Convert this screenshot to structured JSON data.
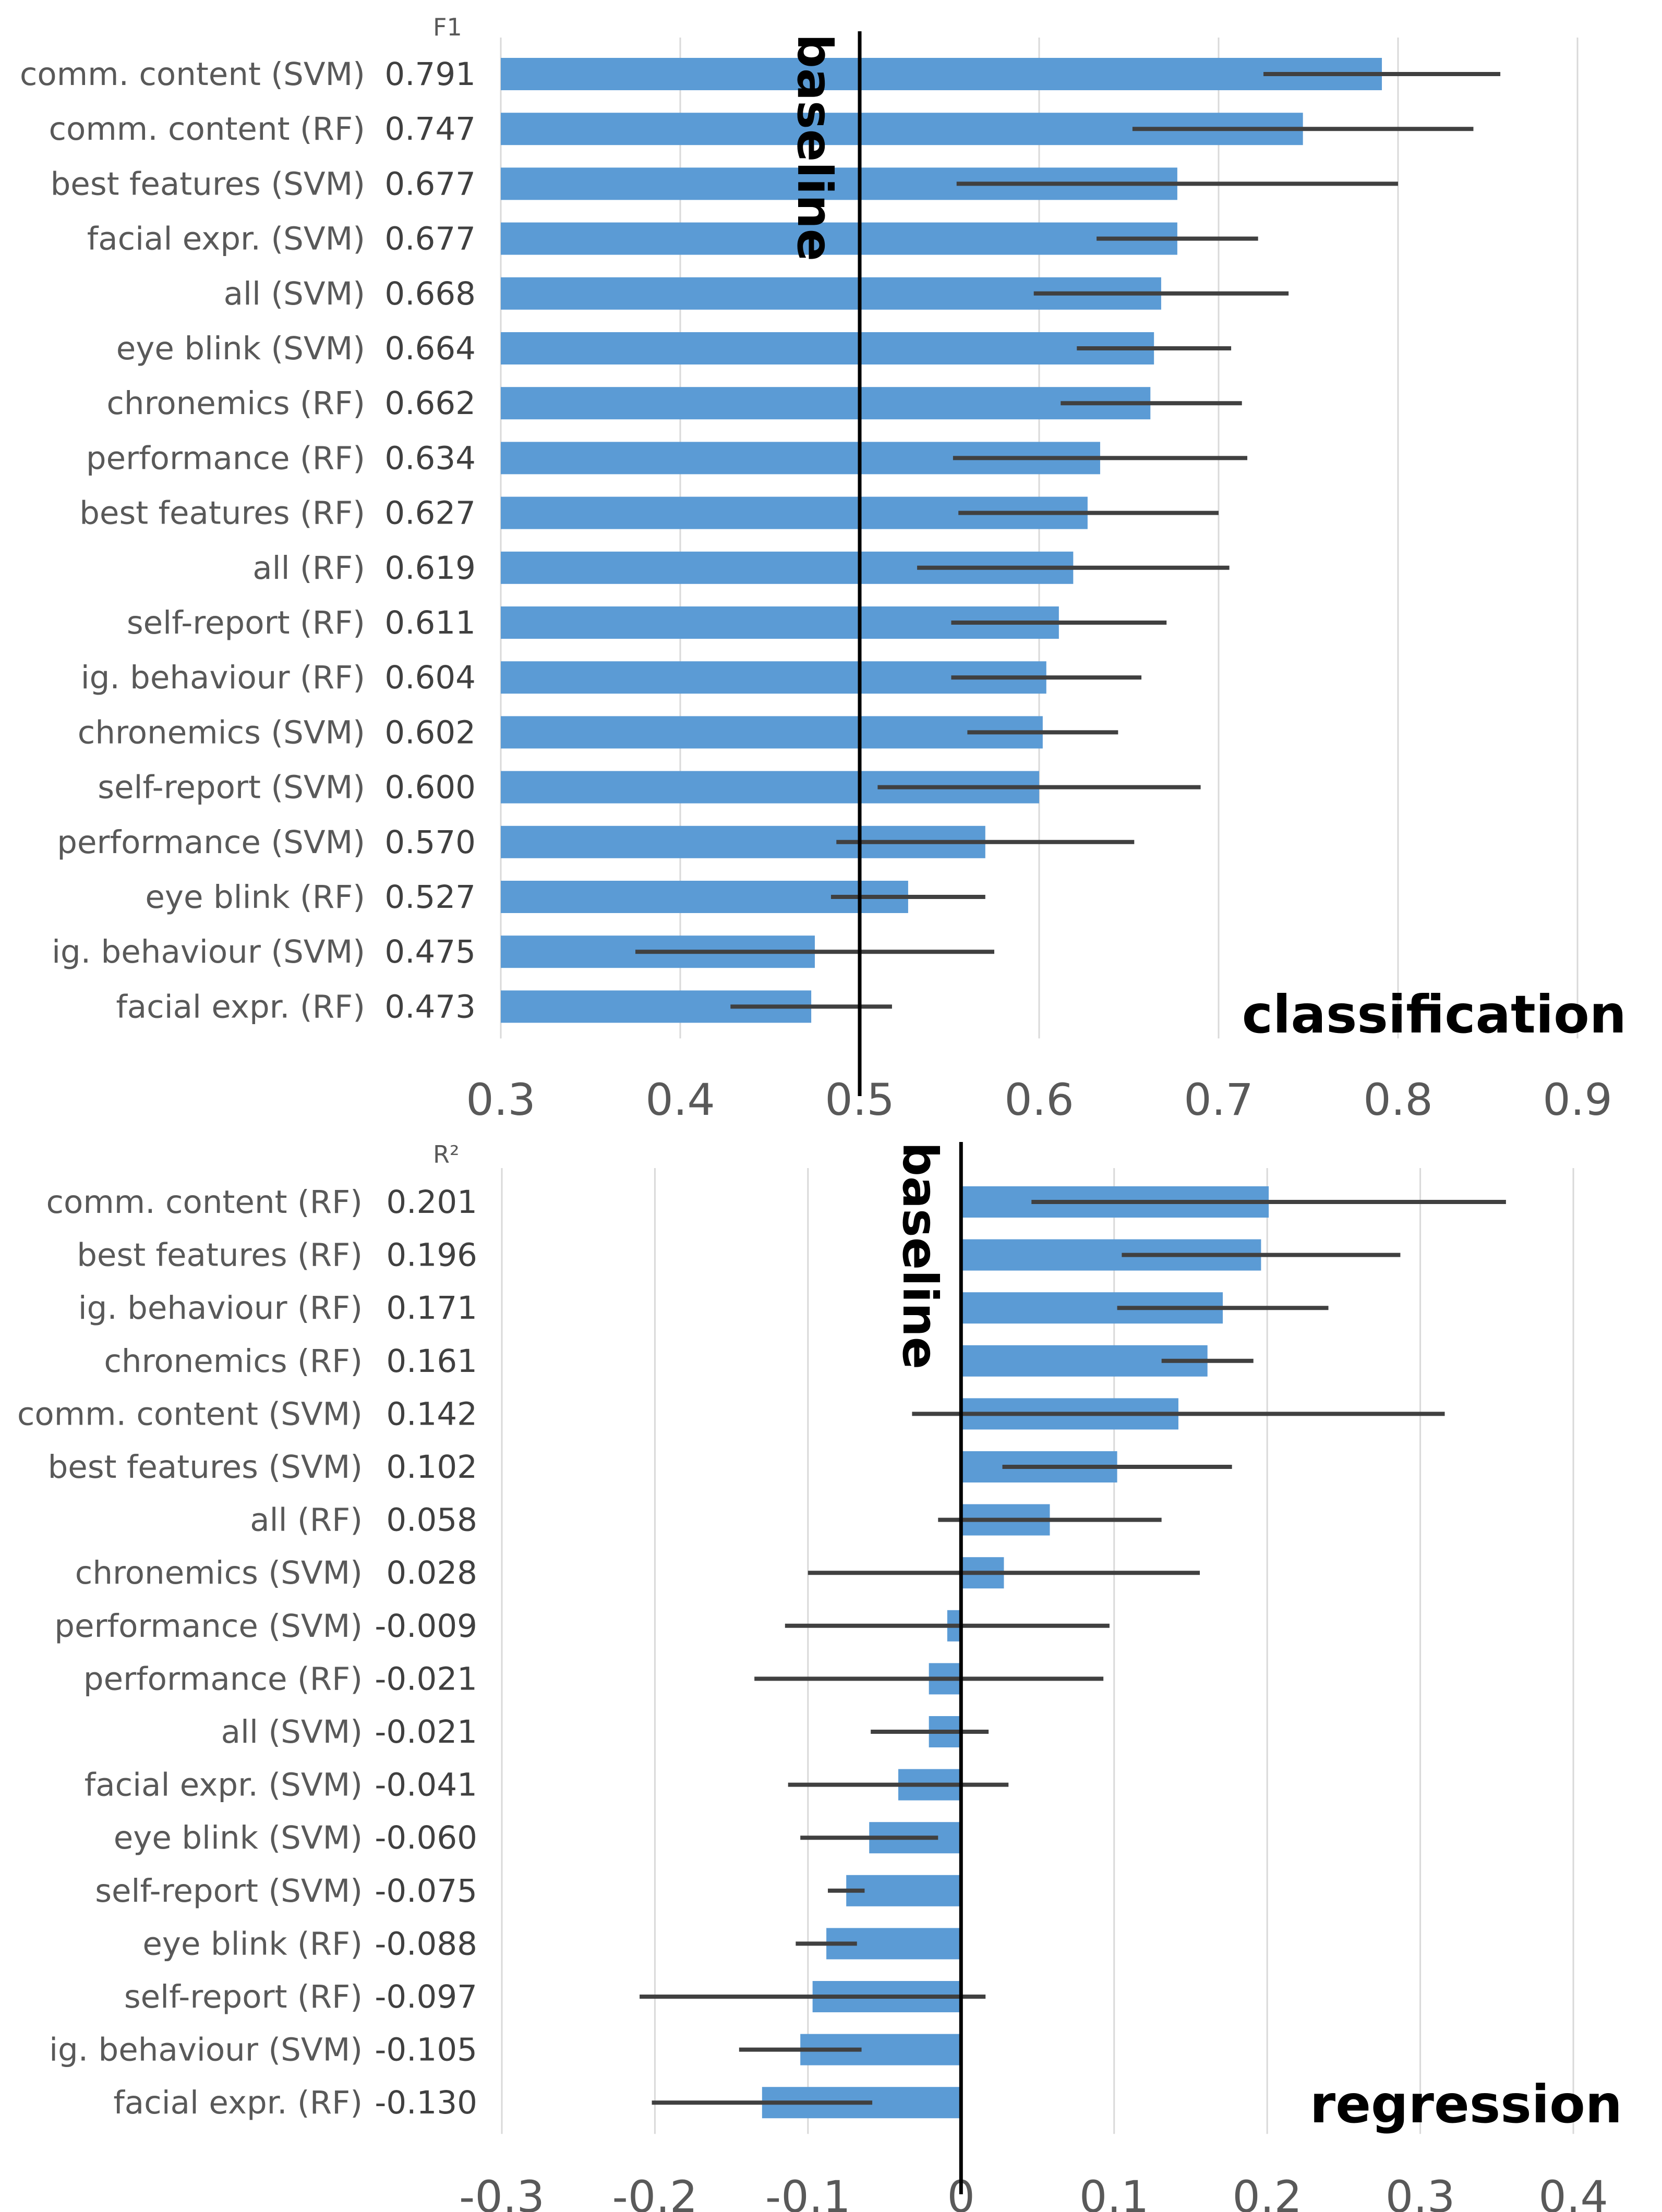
{
  "colors": {
    "bar": "#5b9bd5",
    "errorbar": "#404040",
    "grid": "#d9d9d9",
    "baseline": "#000000"
  },
  "chart_data": [
    {
      "type": "bar",
      "orientation": "horizontal",
      "metric_label": "F1",
      "panel_label": "classification",
      "baseline_label": "baseline",
      "baseline_value": 0.5,
      "xlim": [
        0.3,
        0.9
      ],
      "ticks": [
        "0.3",
        "0.4",
        "0.5",
        "0.6",
        "0.7",
        "0.8",
        "0.9"
      ],
      "grid": true,
      "rows": [
        {
          "label": "comm. content (SVM)",
          "value_text": "0.791",
          "value": 0.791,
          "err_low": 0.725,
          "err_high": 0.857
        },
        {
          "label": "comm. content (RF)",
          "value_text": "0.747",
          "value": 0.747,
          "err_low": 0.652,
          "err_high": 0.842
        },
        {
          "label": "best features (SVM)",
          "value_text": "0.677",
          "value": 0.677,
          "err_low": 0.554,
          "err_high": 0.8
        },
        {
          "label": "facial expr. (SVM)",
          "value_text": "0.677",
          "value": 0.677,
          "err_low": 0.632,
          "err_high": 0.722
        },
        {
          "label": "all (SVM)",
          "value_text": "0.668",
          "value": 0.668,
          "err_low": 0.597,
          "err_high": 0.739
        },
        {
          "label": "eye blink (SVM)",
          "value_text": "0.664",
          "value": 0.664,
          "err_low": 0.621,
          "err_high": 0.707
        },
        {
          "label": "chronemics (RF)",
          "value_text": "0.662",
          "value": 0.662,
          "err_low": 0.612,
          "err_high": 0.713
        },
        {
          "label": "performance (RF)",
          "value_text": "0.634",
          "value": 0.634,
          "err_low": 0.552,
          "err_high": 0.716
        },
        {
          "label": "best features (RF)",
          "value_text": "0.627",
          "value": 0.627,
          "err_low": 0.555,
          "err_high": 0.7
        },
        {
          "label": "all (RF)",
          "value_text": "0.619",
          "value": 0.619,
          "err_low": 0.532,
          "err_high": 0.706
        },
        {
          "label": "self-report (RF)",
          "value_text": "0.611",
          "value": 0.611,
          "err_low": 0.551,
          "err_high": 0.671
        },
        {
          "label": "ig. behaviour (RF)",
          "value_text": "0.604",
          "value": 0.604,
          "err_low": 0.551,
          "err_high": 0.657
        },
        {
          "label": "chronemics (SVM)",
          "value_text": "0.602",
          "value": 0.602,
          "err_low": 0.56,
          "err_high": 0.644
        },
        {
          "label": "self-report (SVM)",
          "value_text": "0.600",
          "value": 0.6,
          "err_low": 0.51,
          "err_high": 0.69
        },
        {
          "label": "performance (SVM)",
          "value_text": "0.570",
          "value": 0.57,
          "err_low": 0.487,
          "err_high": 0.653
        },
        {
          "label": "eye blink (RF)",
          "value_text": "0.527",
          "value": 0.527,
          "err_low": 0.484,
          "err_high": 0.57
        },
        {
          "label": "ig. behaviour (SVM)",
          "value_text": "0.475",
          "value": 0.475,
          "err_low": 0.375,
          "err_high": 0.575
        },
        {
          "label": "facial expr. (RF)",
          "value_text": "0.473",
          "value": 0.473,
          "err_low": 0.428,
          "err_high": 0.518
        }
      ]
    },
    {
      "type": "bar",
      "orientation": "horizontal",
      "metric_label": "R²",
      "panel_label": "regression",
      "baseline_label": "baseline",
      "baseline_value": 0,
      "xlim": [
        -0.3,
        0.4
      ],
      "ticks": [
        "-0.3",
        "-0.2",
        "-0.1",
        "0",
        "0.1",
        "0.2",
        "0.3",
        "0.4"
      ],
      "grid": true,
      "rows": [
        {
          "label": "comm. content (RF)",
          "value_text": "0.201",
          "value": 0.201,
          "err_low": 0.046,
          "err_high": 0.356
        },
        {
          "label": "best features (RF)",
          "value_text": "0.196",
          "value": 0.196,
          "err_low": 0.105,
          "err_high": 0.287
        },
        {
          "label": "ig. behaviour (RF)",
          "value_text": "0.171",
          "value": 0.171,
          "err_low": 0.102,
          "err_high": 0.24
        },
        {
          "label": "chronemics (RF)",
          "value_text": "0.161",
          "value": 0.161,
          "err_low": 0.131,
          "err_high": 0.191
        },
        {
          "label": "comm. content (SVM)",
          "value_text": "0.142",
          "value": 0.142,
          "err_low": -0.032,
          "err_high": 0.316
        },
        {
          "label": "best features (SVM)",
          "value_text": "0.102",
          "value": 0.102,
          "err_low": 0.027,
          "err_high": 0.177
        },
        {
          "label": "all (RF)",
          "value_text": "0.058",
          "value": 0.058,
          "err_low": -0.015,
          "err_high": 0.131
        },
        {
          "label": "chronemics (SVM)",
          "value_text": "0.028",
          "value": 0.028,
          "err_low": -0.1,
          "err_high": 0.156
        },
        {
          "label": "performance (SVM)",
          "value_text": "-0.009",
          "value": -0.009,
          "err_low": -0.115,
          "err_high": 0.097
        },
        {
          "label": "performance (RF)",
          "value_text": "-0.021",
          "value": -0.021,
          "err_low": -0.135,
          "err_high": 0.093
        },
        {
          "label": "all (SVM)",
          "value_text": "-0.021",
          "value": -0.021,
          "err_low": -0.059,
          "err_high": 0.018
        },
        {
          "label": "facial expr. (SVM)",
          "value_text": "-0.041",
          "value": -0.041,
          "err_low": -0.113,
          "err_high": 0.031
        },
        {
          "label": "eye blink (SVM)",
          "value_text": "-0.060",
          "value": -0.06,
          "err_low": -0.105,
          "err_high": -0.015
        },
        {
          "label": "self-report (SVM)",
          "value_text": "-0.075",
          "value": -0.075,
          "err_low": -0.087,
          "err_high": -0.063
        },
        {
          "label": "eye blink (RF)",
          "value_text": "-0.088",
          "value": -0.088,
          "err_low": -0.108,
          "err_high": -0.068
        },
        {
          "label": "self-report (RF)",
          "value_text": "-0.097",
          "value": -0.097,
          "err_low": -0.21,
          "err_high": 0.016
        },
        {
          "label": "ig. behaviour (SVM)",
          "value_text": "-0.105",
          "value": -0.105,
          "err_low": -0.145,
          "err_high": -0.065
        },
        {
          "label": "facial expr. (RF)",
          "value_text": "-0.130",
          "value": -0.13,
          "err_low": -0.202,
          "err_high": -0.058
        }
      ]
    }
  ]
}
